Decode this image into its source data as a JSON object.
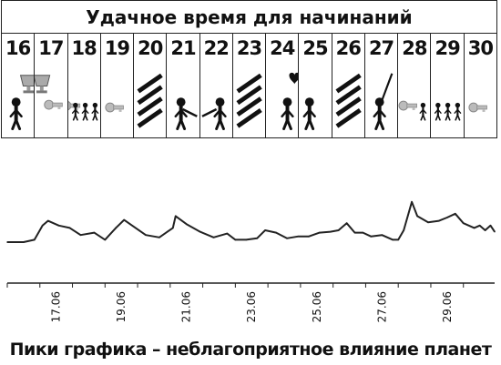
{
  "calendar": {
    "title": "Удачное время для начинаний",
    "days": [
      {
        "num": "16",
        "symbol": "figure-trophy"
      },
      {
        "num": "17",
        "symbol": "trophy"
      },
      {
        "num": "18",
        "symbol": "crowd-key"
      },
      {
        "num": "19",
        "symbol": "key"
      },
      {
        "num": "20",
        "symbol": "hatched"
      },
      {
        "num": "21",
        "symbol": "handshake-left"
      },
      {
        "num": "22",
        "symbol": "handshake-right"
      },
      {
        "num": "23",
        "symbol": "hatched"
      },
      {
        "num": "24",
        "symbol": "kiss-heart"
      },
      {
        "num": "25",
        "symbol": "kiss-right"
      },
      {
        "num": "26",
        "symbol": "hatched"
      },
      {
        "num": "27",
        "symbol": "figure-pointing"
      },
      {
        "num": "28",
        "symbol": "key-crowd"
      },
      {
        "num": "29",
        "symbol": "crowd"
      },
      {
        "num": "30",
        "symbol": "key"
      }
    ]
  },
  "chart_data": {
    "type": "line",
    "xlabel": "",
    "ylabel": "",
    "x_ticks": [
      "17.06",
      "19.06",
      "21.06",
      "23.06",
      "25.06",
      "27.06",
      "29.06"
    ],
    "x_range": [
      "16.06",
      "30.06"
    ],
    "series": [
      {
        "values": [
          [
            "16.06 00:00",
            0.0
          ],
          [
            "16.06 12:00",
            0.0
          ],
          [
            "16.06 20:00",
            0.05
          ],
          [
            "17.06 02:00",
            0.35
          ],
          [
            "17.06 06:00",
            0.45
          ],
          [
            "17.06 14:00",
            0.35
          ],
          [
            "17.06 22:00",
            0.3
          ],
          [
            "18.06 06:00",
            0.15
          ],
          [
            "18.06 16:00",
            0.2
          ],
          [
            "19.06 00:00",
            0.05
          ],
          [
            "19.06 08:00",
            0.3
          ],
          [
            "19.06 14:00",
            0.47
          ],
          [
            "19.06 20:00",
            0.35
          ],
          [
            "20.06 06:00",
            0.15
          ],
          [
            "20.06 16:00",
            0.1
          ],
          [
            "20.06 22:00",
            0.22
          ],
          [
            "21.06 02:00",
            0.3
          ],
          [
            "21.06 04:00",
            0.55
          ],
          [
            "21.06 12:00",
            0.38
          ],
          [
            "21.06 22:00",
            0.22
          ],
          [
            "22.06 08:00",
            0.1
          ],
          [
            "22.06 18:00",
            0.18
          ],
          [
            "23.06 00:00",
            0.05
          ],
          [
            "23.06 08:00",
            0.05
          ],
          [
            "23.06 16:00",
            0.08
          ],
          [
            "23.06 22:00",
            0.25
          ],
          [
            "24.06 06:00",
            0.2
          ],
          [
            "24.06 14:00",
            0.08
          ],
          [
            "24.06 22:00",
            0.12
          ],
          [
            "25.06 06:00",
            0.12
          ],
          [
            "25.06 14:00",
            0.2
          ],
          [
            "25.06 22:00",
            0.22
          ],
          [
            "26.06 04:00",
            0.25
          ],
          [
            "26.06 10:00",
            0.4
          ],
          [
            "26.06 16:00",
            0.2
          ],
          [
            "26.06 22:00",
            0.2
          ],
          [
            "27.06 04:00",
            0.12
          ],
          [
            "27.06 12:00",
            0.15
          ],
          [
            "27.06 20:00",
            0.05
          ],
          [
            "28.06 00:00",
            0.05
          ],
          [
            "28.06 04:00",
            0.25
          ],
          [
            "28.06 10:00",
            0.85
          ],
          [
            "28.06 14:00",
            0.55
          ],
          [
            "28.06 22:00",
            0.42
          ],
          [
            "29.06 06:00",
            0.45
          ],
          [
            "29.06 12:00",
            0.52
          ],
          [
            "29.06 18:00",
            0.6
          ],
          [
            "30.06 00:00",
            0.4
          ],
          [
            "30.06 08:00",
            0.3
          ],
          [
            "30.06 12:00",
            0.35
          ],
          [
            "30.06 16:00",
            0.25
          ],
          [
            "30.06 20:00",
            0.35
          ],
          [
            "30.06 23:00",
            0.22
          ]
        ]
      }
    ],
    "ylim": [
      0,
      1
    ],
    "grid": false,
    "legend": "none"
  },
  "caption": "Пики графика – неблагоприятное влияние планет",
  "colors": {
    "ink": "#111111",
    "key_fill": "#bbbbbb",
    "heart": "#111111"
  }
}
